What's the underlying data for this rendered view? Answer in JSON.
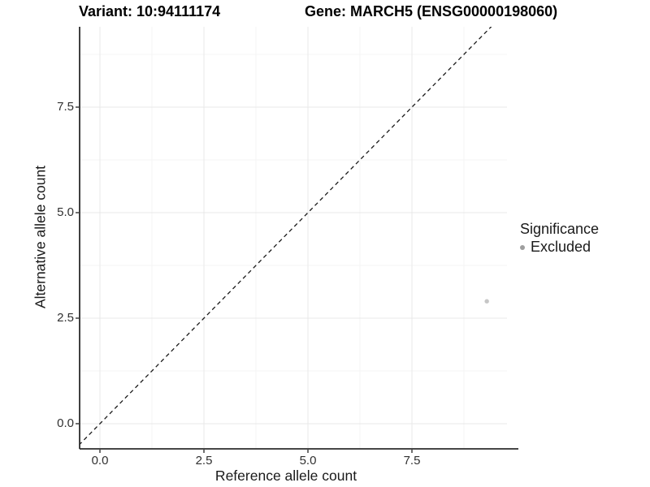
{
  "titles": {
    "variant": "Variant: 10:94111174",
    "gene": "Gene: MARCH5 (ENSG00000198060)"
  },
  "axis": {
    "x_label": "Reference allele count",
    "y_label": "Alternative allele count"
  },
  "legend": {
    "title": "Significance",
    "items": [
      {
        "label": "Excluded",
        "color": "#9e9e9e"
      }
    ]
  },
  "style": {
    "background": "#ffffff",
    "grid_major": "#e9e9e9",
    "grid_minor": "#f4f4f4",
    "axis_line": "#2b2b2b",
    "tick_mark": "#333333",
    "dashed_line": "#1a1a1a",
    "point_color": "#c6c6c6"
  },
  "chart_data": {
    "type": "scatter",
    "title": "Variant: 10:94111174 — Gene: MARCH5 (ENSG00000198060)",
    "xlabel": "Reference allele count",
    "ylabel": "Alternative allele count",
    "xlim": [
      -0.5,
      9.8
    ],
    "ylim": [
      -0.6,
      9.4
    ],
    "x_ticks": [
      0.0,
      2.5,
      5.0,
      7.5
    ],
    "y_ticks": [
      0.0,
      2.5,
      5.0,
      7.5
    ],
    "x_tick_labels": [
      "0.0",
      "2.5",
      "5.0",
      "7.5"
    ],
    "y_tick_labels": [
      "0.0",
      "2.5",
      "5.0",
      "7.5"
    ],
    "minor_tick_interval": 1.25,
    "grid": true,
    "legend_position": "right",
    "reference_line": {
      "style": "dashed",
      "equation": "y = x"
    },
    "series": [
      {
        "name": "Excluded",
        "color": "#c6c6c6",
        "point_radius": 2.7,
        "points": [
          {
            "x": 9.3,
            "y": 2.9
          }
        ]
      }
    ]
  }
}
